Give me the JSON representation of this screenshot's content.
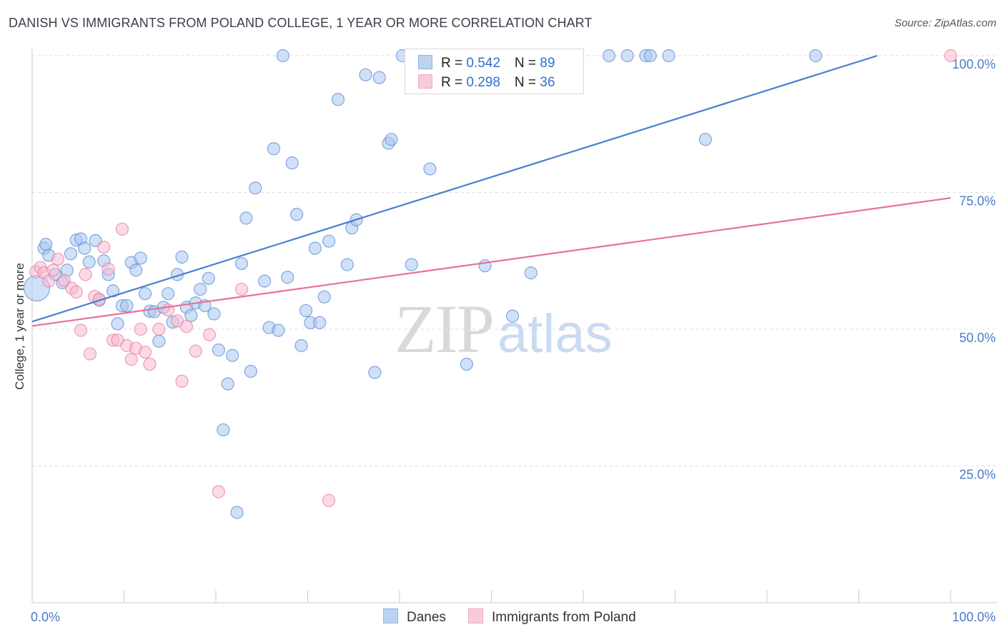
{
  "title": "DANISH VS IMMIGRANTS FROM POLAND COLLEGE, 1 YEAR OR MORE CORRELATION CHART",
  "source": "Source: ZipAtlas.com",
  "watermark": {
    "zip": "ZIP",
    "atlas": "atlas"
  },
  "legend_top": [
    {
      "r_label": "R = ",
      "r_value": "0.542",
      "n_label": "N = ",
      "n_value": "89",
      "color": "#8fb4e6"
    },
    {
      "r_label": "R = ",
      "r_value": "0.298",
      "n_label": "N = ",
      "n_value": "36",
      "color": "#f2a8c3"
    }
  ],
  "chart_data": {
    "type": "scatter",
    "xlabel": "",
    "ylabel": "College, 1 year or more",
    "xlim": [
      0,
      100
    ],
    "ylim": [
      0,
      100
    ],
    "x_tick_labels": [
      "0.0%",
      "100.0%"
    ],
    "y_ticks": [
      25,
      50,
      75,
      100
    ],
    "y_tick_labels": [
      "25.0%",
      "50.0%",
      "75.0%",
      "100.0%"
    ],
    "grid": true,
    "legend_placement": "top-center",
    "series": [
      {
        "name": "Danes",
        "color": "#4a7fd0",
        "fill": "#a9c6ee",
        "trend": {
          "x": [
            0,
            92
          ],
          "y": [
            51.4,
            100
          ]
        },
        "points": [
          [
            0.5,
            57.5
          ],
          [
            1.3,
            64.8
          ],
          [
            1.5,
            65.5
          ],
          [
            1.8,
            63.5
          ],
          [
            2.5,
            60.0
          ],
          [
            3.3,
            58.5
          ],
          [
            3.8,
            60.8
          ],
          [
            4.2,
            63.8
          ],
          [
            4.8,
            66.3
          ],
          [
            5.3,
            66.5
          ],
          [
            5.7,
            64.8
          ],
          [
            6.2,
            62.3
          ],
          [
            6.9,
            66.2
          ],
          [
            7.3,
            55.3
          ],
          [
            7.8,
            62.5
          ],
          [
            8.3,
            60.0
          ],
          [
            8.8,
            57.0
          ],
          [
            9.3,
            51.0
          ],
          [
            9.8,
            54.3
          ],
          [
            10.3,
            54.3
          ],
          [
            10.8,
            62.2
          ],
          [
            11.3,
            60.8
          ],
          [
            11.8,
            63.0
          ],
          [
            12.3,
            56.5
          ],
          [
            12.8,
            53.3
          ],
          [
            13.3,
            53.2
          ],
          [
            13.8,
            47.8
          ],
          [
            14.3,
            54.0
          ],
          [
            14.8,
            56.5
          ],
          [
            15.3,
            51.3
          ],
          [
            15.8,
            60.0
          ],
          [
            16.3,
            63.2
          ],
          [
            16.8,
            54.0
          ],
          [
            17.3,
            52.5
          ],
          [
            17.8,
            54.8
          ],
          [
            18.3,
            57.3
          ],
          [
            18.8,
            54.3
          ],
          [
            19.2,
            59.3
          ],
          [
            19.8,
            52.8
          ],
          [
            20.3,
            46.2
          ],
          [
            20.8,
            31.6
          ],
          [
            21.3,
            40.0
          ],
          [
            21.8,
            45.2
          ],
          [
            22.3,
            16.5
          ],
          [
            22.8,
            62.0
          ],
          [
            23.3,
            70.3
          ],
          [
            23.8,
            42.3
          ],
          [
            24.3,
            75.8
          ],
          [
            25.3,
            58.8
          ],
          [
            25.8,
            50.3
          ],
          [
            26.3,
            83.0
          ],
          [
            26.8,
            49.8
          ],
          [
            27.3,
            100.0
          ],
          [
            27.8,
            59.5
          ],
          [
            28.3,
            80.4
          ],
          [
            28.8,
            71.0
          ],
          [
            29.3,
            47.0
          ],
          [
            29.8,
            53.4
          ],
          [
            30.3,
            51.2
          ],
          [
            30.8,
            64.8
          ],
          [
            31.3,
            51.2
          ],
          [
            31.8,
            55.9
          ],
          [
            32.3,
            66.1
          ],
          [
            33.3,
            92.0
          ],
          [
            34.3,
            61.8
          ],
          [
            34.8,
            68.5
          ],
          [
            35.3,
            70.0
          ],
          [
            36.3,
            96.5
          ],
          [
            37.3,
            42.1
          ],
          [
            37.8,
            96.0
          ],
          [
            38.8,
            84.0
          ],
          [
            39.1,
            84.7
          ],
          [
            40.3,
            100.0
          ],
          [
            41.3,
            61.8
          ],
          [
            42.3,
            100.0
          ],
          [
            43.3,
            79.3
          ],
          [
            44.3,
            100.0
          ],
          [
            47.3,
            43.6
          ],
          [
            49.3,
            61.6
          ],
          [
            52.3,
            52.4
          ],
          [
            54.3,
            60.3
          ],
          [
            58.3,
            100.0
          ],
          [
            62.8,
            100.0
          ],
          [
            64.8,
            100.0
          ],
          [
            66.8,
            100.0
          ],
          [
            67.3,
            100.0
          ],
          [
            69.3,
            100.0
          ],
          [
            73.3,
            84.7
          ],
          [
            85.3,
            100.0
          ]
        ]
      },
      {
        "name": "Immigrants from Poland",
        "color": "#e8709b",
        "fill": "#f6bcd0",
        "trend": {
          "x": [
            0,
            100
          ],
          "y": [
            50.6,
            74.0
          ]
        },
        "points": [
          [
            0.4,
            60.5
          ],
          [
            0.9,
            61.3
          ],
          [
            1.3,
            60.3
          ],
          [
            1.8,
            58.8
          ],
          [
            2.3,
            60.8
          ],
          [
            2.8,
            62.8
          ],
          [
            3.5,
            58.9
          ],
          [
            4.3,
            57.5
          ],
          [
            4.8,
            56.8
          ],
          [
            5.3,
            49.8
          ],
          [
            5.8,
            60.0
          ],
          [
            6.3,
            45.5
          ],
          [
            6.8,
            56.0
          ],
          [
            7.3,
            55.5
          ],
          [
            7.8,
            65.0
          ],
          [
            8.3,
            61.0
          ],
          [
            8.8,
            48.0
          ],
          [
            9.3,
            48.0
          ],
          [
            9.8,
            68.3
          ],
          [
            10.3,
            47.0
          ],
          [
            10.8,
            44.5
          ],
          [
            11.3,
            46.5
          ],
          [
            11.8,
            50.0
          ],
          [
            12.3,
            45.8
          ],
          [
            12.8,
            43.6
          ],
          [
            13.8,
            50.0
          ],
          [
            14.8,
            53.5
          ],
          [
            15.8,
            51.5
          ],
          [
            16.3,
            40.5
          ],
          [
            16.8,
            50.5
          ],
          [
            17.8,
            46.0
          ],
          [
            19.3,
            49.0
          ],
          [
            20.3,
            20.3
          ],
          [
            22.8,
            57.3
          ],
          [
            32.3,
            18.7
          ],
          [
            100.0,
            100.0
          ]
        ]
      }
    ]
  },
  "legend_bottom": [
    {
      "label": "Danes",
      "color": "#8fb4e6"
    },
    {
      "label": "Immigrants from Poland",
      "color": "#f2a8c3"
    }
  ]
}
